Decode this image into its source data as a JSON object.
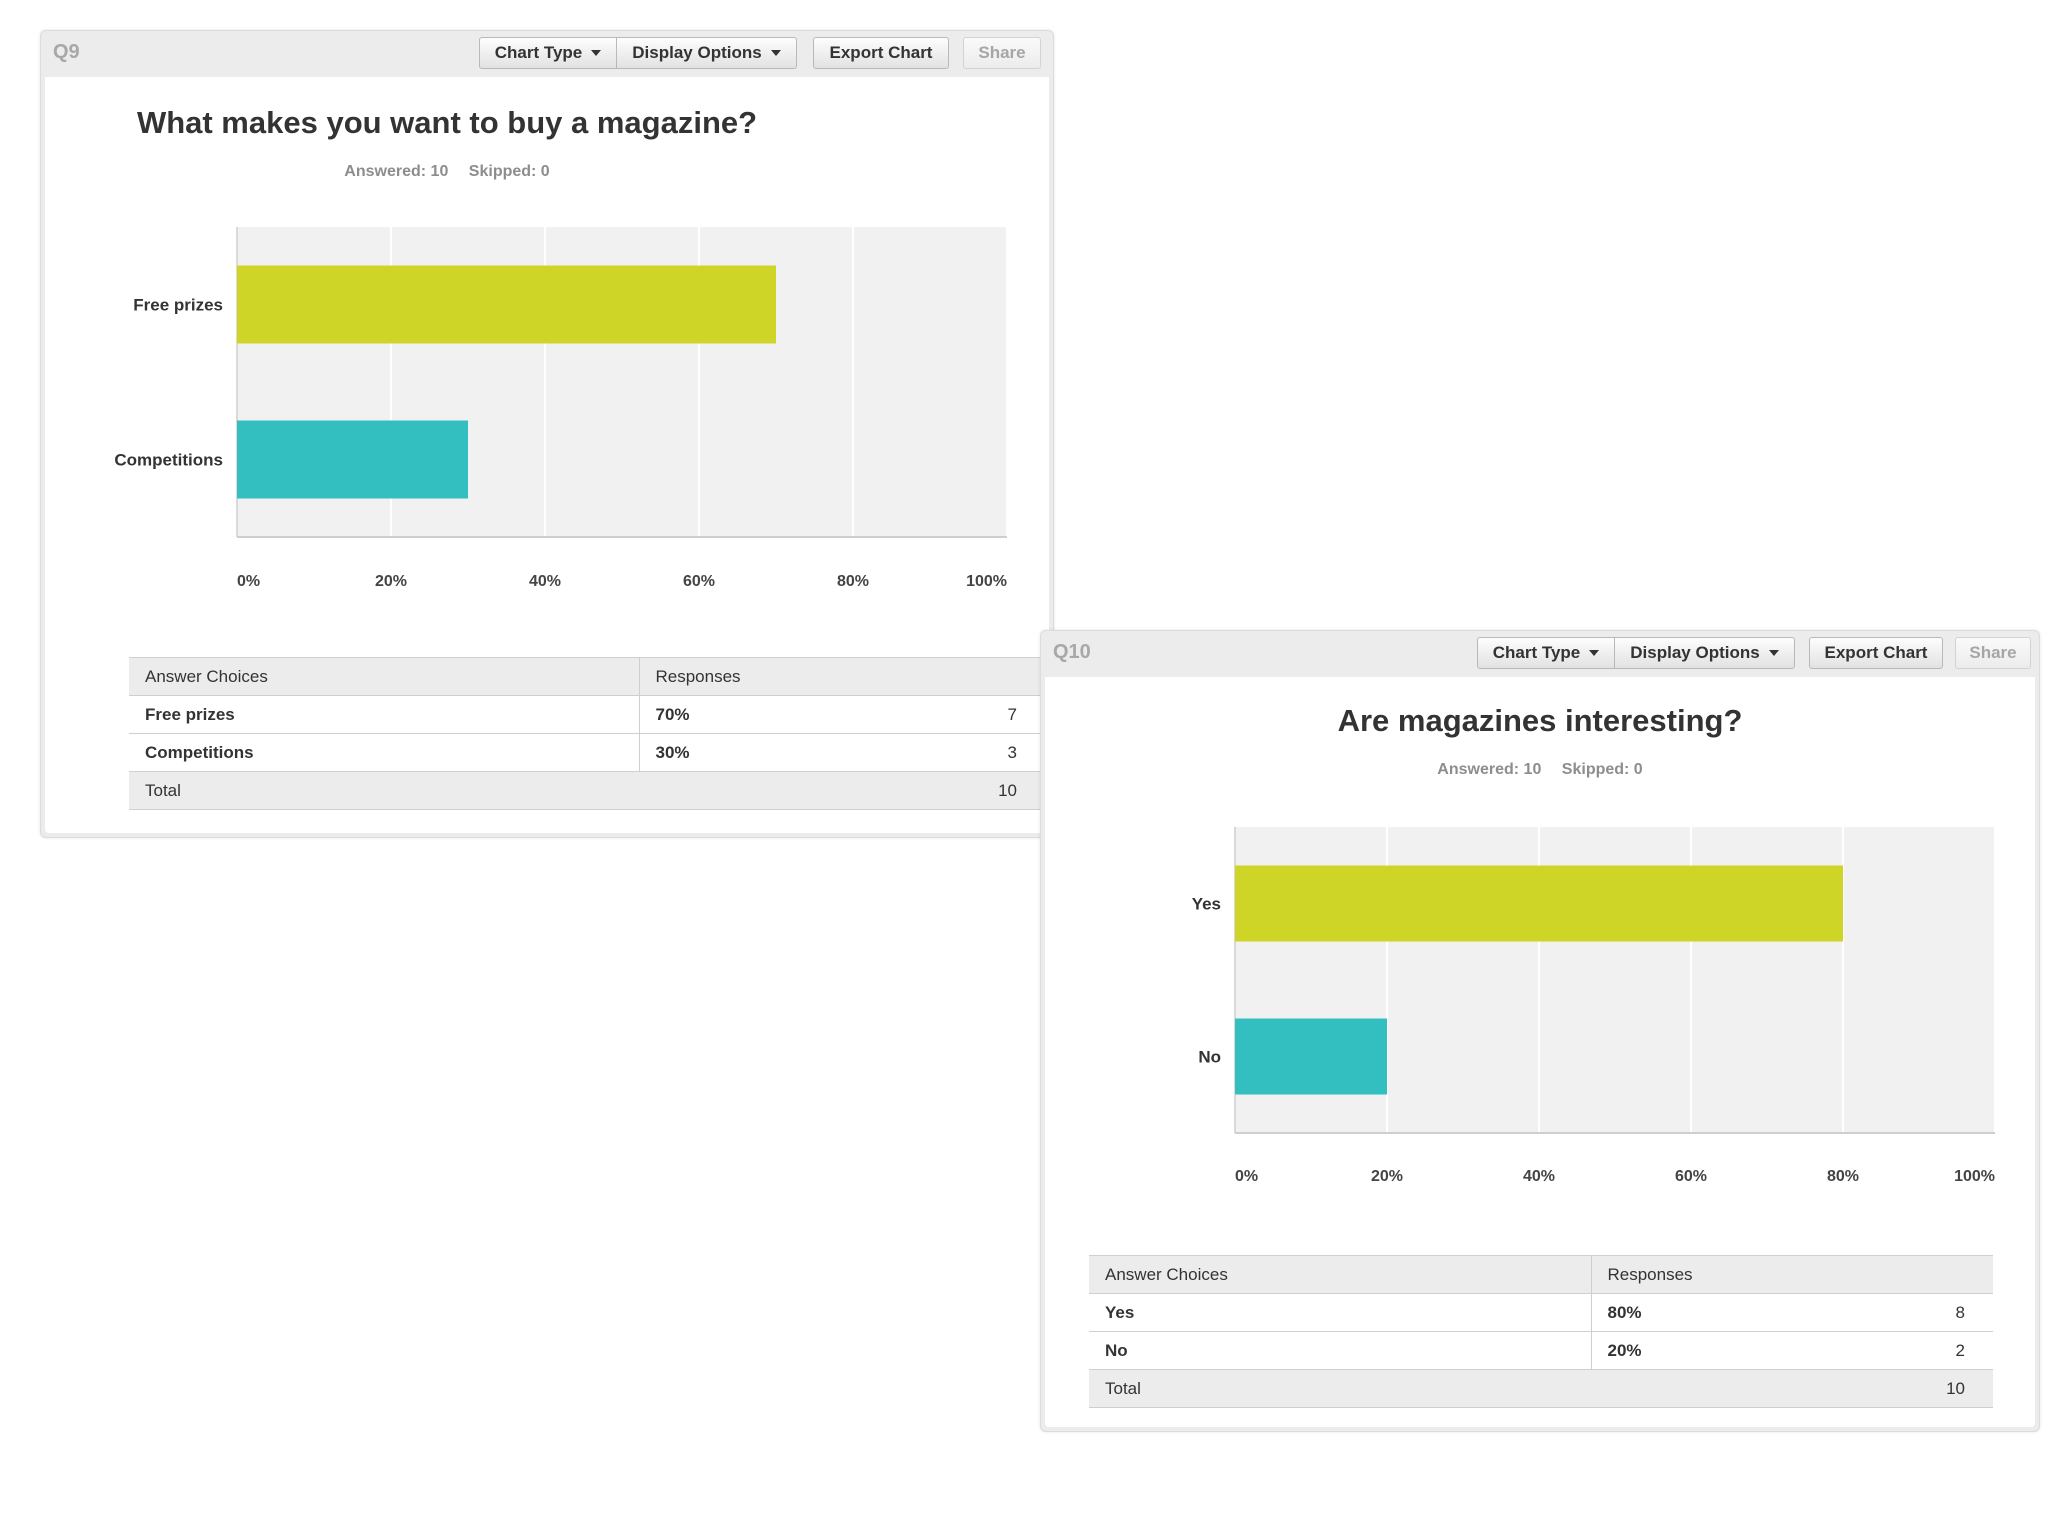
{
  "toolbar": {
    "chart_type_label": "Chart Type",
    "display_options_label": "Display Options",
    "export_chart_label": "Export Chart",
    "share_label": "Share"
  },
  "table_headers": {
    "answer_choices": "Answer Choices",
    "responses": "Responses",
    "total": "Total"
  },
  "colors": {
    "bar_primary": "#cfd527",
    "bar_secondary": "#33bec0",
    "plot_background": "#f1f1f1",
    "gridline": "#ffffff"
  },
  "panels": [
    {
      "question": "Q9",
      "answered": "Answered: 10",
      "skipped": "Skipped: 0",
      "rows": [
        {
          "choice": "Free prizes",
          "percent": "70%",
          "count": "7"
        },
        {
          "choice": "Competitions",
          "percent": "30%",
          "count": "3"
        }
      ],
      "total": "10"
    },
    {
      "question": "Q10",
      "answered": "Answered: 10",
      "skipped": "Skipped: 0",
      "rows": [
        {
          "choice": "Yes",
          "percent": "80%",
          "count": "8"
        },
        {
          "choice": "No",
          "percent": "20%",
          "count": "2"
        }
      ],
      "total": "10"
    }
  ],
  "chart_data": [
    {
      "type": "bar",
      "orientation": "horizontal",
      "title": "What makes you want to buy a magazine?",
      "categories": [
        "Free prizes",
        "Competitions"
      ],
      "values": [
        70,
        30
      ],
      "xlim": [
        0,
        100
      ],
      "ticks": [
        "0%",
        "20%",
        "40%",
        "60%",
        "80%",
        "100%"
      ],
      "tick_values": [
        0,
        20,
        40,
        60,
        80,
        100
      ],
      "grid": true,
      "legend": "none"
    },
    {
      "type": "bar",
      "orientation": "horizontal",
      "title": "Are magazines interesting?",
      "categories": [
        "Yes",
        "No"
      ],
      "values": [
        80,
        20
      ],
      "xlim": [
        0,
        100
      ],
      "ticks": [
        "0%",
        "20%",
        "40%",
        "60%",
        "80%",
        "100%"
      ],
      "tick_values": [
        0,
        20,
        40,
        60,
        80,
        100
      ],
      "grid": true,
      "legend": "none"
    }
  ]
}
